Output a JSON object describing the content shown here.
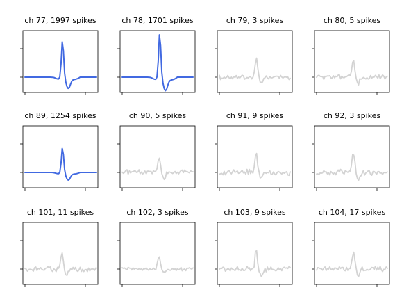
{
  "chart_data": [
    {
      "type": "line",
      "title": "ch 77, 1997 spikes",
      "color": "#4169e1",
      "shape": "A",
      "amp": 1.0
    },
    {
      "type": "line",
      "title": "ch 78, 1701 spikes",
      "color": "#4169e1",
      "shape": "A",
      "amp": 1.2
    },
    {
      "type": "line",
      "title": "ch 79, 3 spikes",
      "color": "#d3d3d3",
      "shape": "N1",
      "amp": 0.5
    },
    {
      "type": "line",
      "title": "ch 80, 5 spikes",
      "color": "#d3d3d3",
      "shape": "N2",
      "amp": 0.47
    },
    {
      "type": "line",
      "title": "ch 89, 1254 spikes",
      "color": "#4169e1",
      "shape": "A",
      "amp": 0.68
    },
    {
      "type": "line",
      "title": "ch 90, 5 spikes",
      "color": "#d3d3d3",
      "shape": "N2",
      "amp": 0.45
    },
    {
      "type": "line",
      "title": "ch 91, 9 spikes",
      "color": "#d3d3d3",
      "shape": "N3",
      "amp": 0.52
    },
    {
      "type": "line",
      "title": "ch 92, 3 spikes",
      "color": "#d3d3d3",
      "shape": "N4",
      "amp": 0.52
    },
    {
      "type": "line",
      "title": "ch 101, 11 spikes",
      "color": "#d3d3d3",
      "shape": "N3",
      "amp": 0.47
    },
    {
      "type": "line",
      "title": "ch 102, 3 spikes",
      "color": "#d3d3d3",
      "shape": "N1",
      "amp": 0.35
    },
    {
      "type": "line",
      "title": "ch 103, 9 spikes",
      "color": "#d3d3d3",
      "shape": "N3",
      "amp": 0.52
    },
    {
      "type": "line",
      "title": "ch 104, 17 spikes",
      "color": "#d3d3d3",
      "shape": "N4",
      "amp": 0.52
    }
  ]
}
